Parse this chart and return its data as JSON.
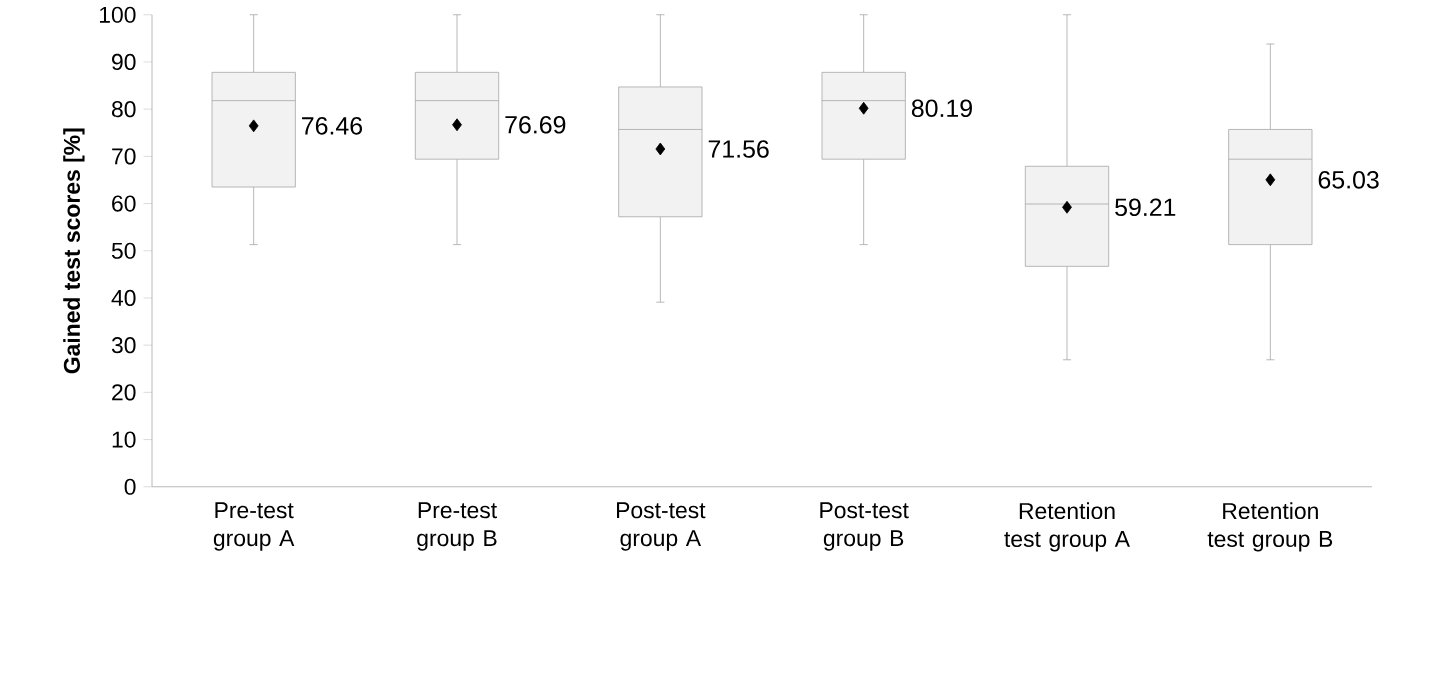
{
  "chart_data": {
    "type": "box",
    "ylabel": "Gained test scores [%]",
    "categories": [
      "Pre-test group A",
      "Pre-test group B",
      "Post-test group A",
      "Post-test group B",
      "Retention test group A",
      "Retention test group B"
    ],
    "boxes": [
      {
        "low": 51.3,
        "q1": 63.5,
        "median": 81.8,
        "q3": 87.8,
        "high": 100,
        "mean": 76.46
      },
      {
        "low": 51.3,
        "q1": 69.4,
        "median": 81.8,
        "q3": 87.8,
        "high": 100,
        "mean": 76.69
      },
      {
        "low": 39.1,
        "q1": 57.2,
        "median": 75.7,
        "q3": 84.7,
        "high": 100,
        "mean": 71.56
      },
      {
        "low": 51.3,
        "q1": 69.4,
        "median": 81.8,
        "q3": 87.8,
        "high": 100,
        "mean": 80.19
      },
      {
        "low": 26.9,
        "q1": 46.7,
        "median": 59.9,
        "q3": 67.9,
        "high": 100,
        "mean": 59.21
      },
      {
        "low": 26.9,
        "q1": 51.3,
        "median": 69.4,
        "q3": 75.7,
        "high": 93.8,
        "mean": 65.03
      }
    ],
    "color": "#f2f2f2",
    "marker": "diamond",
    "ylim": [
      0,
      100
    ],
    "yticks": [
      0,
      10,
      20,
      30,
      40,
      50,
      60,
      70,
      80,
      90,
      100
    ],
    "annotations": [
      "76.46",
      "76.69",
      "71.56",
      "80.19",
      "59.21",
      "65.03"
    ]
  }
}
